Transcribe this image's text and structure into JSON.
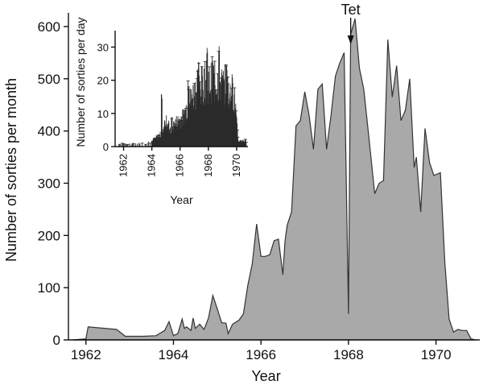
{
  "chart_data": [
    {
      "type": "area",
      "title": "",
      "xlabel": "Year",
      "ylabel": "Number of sorties per month",
      "xlim": [
        1961.6,
        1971.0
      ],
      "ylim": [
        0,
        620
      ],
      "xticks": [
        1962,
        1964,
        1966,
        1968,
        1970
      ],
      "yticks": [
        0,
        100,
        200,
        300,
        400,
        500,
        600
      ],
      "fill_color": "#a9a9a9",
      "annotation": {
        "text": "Tet",
        "x": 1968.05,
        "y": 610
      },
      "series": [
        {
          "x": [
            1961.7,
            1962.0,
            1962.05,
            1962.7,
            1962.9,
            1963.3,
            1963.6,
            1963.8,
            1963.9,
            1964.0,
            1964.1,
            1964.2,
            1964.25,
            1964.3,
            1964.4,
            1964.45,
            1964.5,
            1964.6,
            1964.7,
            1964.8,
            1964.9,
            1965.0,
            1965.1,
            1965.2,
            1965.25,
            1965.35,
            1965.5,
            1965.6,
            1965.7,
            1965.8,
            1965.9,
            1966.0,
            1966.1,
            1966.2,
            1966.3,
            1966.4,
            1966.5,
            1966.55,
            1966.6,
            1966.7,
            1966.8,
            1966.9,
            1967.0,
            1967.1,
            1967.2,
            1967.3,
            1967.4,
            1967.5,
            1967.6,
            1967.7,
            1967.8,
            1967.9,
            1968.0,
            1968.05,
            1968.15,
            1968.25,
            1968.35,
            1968.45,
            1968.6,
            1968.7,
            1968.8,
            1968.9,
            1969.0,
            1969.1,
            1969.2,
            1969.3,
            1969.4,
            1969.5,
            1969.55,
            1969.65,
            1969.75,
            1969.85,
            1969.95,
            1970.1,
            1970.2,
            1970.3,
            1970.4,
            1970.5,
            1970.6,
            1970.7,
            1970.8,
            1970.9
          ],
          "y": [
            0,
            2,
            25,
            20,
            7,
            7,
            8,
            18,
            35,
            8,
            12,
            40,
            22,
            25,
            18,
            42,
            22,
            30,
            20,
            42,
            85,
            60,
            33,
            32,
            12,
            30,
            38,
            50,
            105,
            145,
            222,
            160,
            160,
            163,
            190,
            193,
            125,
            190,
            220,
            245,
            410,
            420,
            475,
            430,
            365,
            480,
            490,
            365,
            430,
            505,
            530,
            550,
            50,
            585,
            615,
            520,
            480,
            400,
            280,
            300,
            305,
            575,
            465,
            525,
            420,
            440,
            500,
            330,
            350,
            245,
            405,
            340,
            315,
            320,
            150,
            40,
            15,
            20,
            18,
            18,
            2,
            0
          ]
        }
      ]
    },
    {
      "type": "bar",
      "title": "",
      "xlabel": "Year",
      "ylabel": "Number of sorties per day",
      "xlim": [
        1961.4,
        1970.8
      ],
      "ylim": [
        0,
        34
      ],
      "xticks": [
        1962,
        1964,
        1966,
        1968,
        1970
      ],
      "yticks": [
        0,
        10,
        20,
        30
      ],
      "bar_color": "#2b2b2b",
      "envelope": {
        "x": [
          1961.5,
          1962.0,
          1962.5,
          1963.0,
          1963.5,
          1964.0,
          1964.3,
          1964.6,
          1964.8,
          1965.0,
          1965.3,
          1965.6,
          1965.9,
          1966.2,
          1966.5,
          1966.8,
          1967.1,
          1967.4,
          1967.7,
          1967.9,
          1968.1,
          1968.3,
          1968.5,
          1968.7,
          1968.9,
          1969.1,
          1969.3,
          1969.5,
          1969.7,
          1969.9,
          1970.1,
          1970.3,
          1970.5,
          1970.7
        ],
        "y": [
          0.5,
          1,
          1,
          1,
          1,
          2,
          3,
          4,
          6,
          10,
          5,
          8,
          9,
          10,
          14,
          17,
          20,
          21,
          22,
          23,
          22,
          24,
          22,
          23,
          22,
          21,
          23,
          18,
          20,
          15,
          2,
          2,
          2,
          2
        ],
        "peaks": [
          [
            1964.7,
            16.5
          ],
          [
            1965.4,
            9
          ],
          [
            1966.6,
            20
          ],
          [
            1967.3,
            26
          ],
          [
            1967.9,
            30
          ],
          [
            1968.3,
            27
          ],
          [
            1968.75,
            31
          ],
          [
            1969.3,
            25
          ],
          [
            1969.7,
            22
          ]
        ]
      }
    }
  ]
}
